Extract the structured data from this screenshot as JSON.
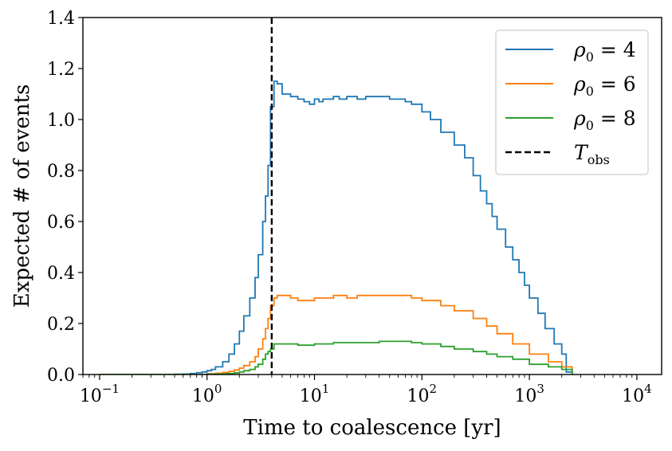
{
  "chart_data": {
    "type": "line",
    "style": "step histogram",
    "xscale": "log",
    "xlabel": "Time to coalescence [yr]",
    "ylabel": "Expected # of events",
    "xlim": [
      0.07,
      17000
    ],
    "ylim": [
      0,
      1.4
    ],
    "xticks": [
      {
        "value": 0.1,
        "base": "10",
        "exp": "−1"
      },
      {
        "value": 1,
        "base": "10",
        "exp": "0"
      },
      {
        "value": 10,
        "base": "10",
        "exp": "1"
      },
      {
        "value": 100,
        "base": "10",
        "exp": "2"
      },
      {
        "value": 1000,
        "base": "10",
        "exp": "3"
      },
      {
        "value": 10000,
        "base": "10",
        "exp": "4"
      }
    ],
    "yticks": [
      {
        "value": 0,
        "label": "0.0"
      },
      {
        "value": 0.2,
        "label": "0.2"
      },
      {
        "value": 0.4,
        "label": "0.4"
      },
      {
        "value": 0.6,
        "label": "0.6"
      },
      {
        "value": 0.8,
        "label": "0.8"
      },
      {
        "value": 1.0,
        "label": "1.0"
      },
      {
        "value": 1.2,
        "label": "1.2"
      },
      {
        "value": 1.4,
        "label": "1.4"
      }
    ],
    "grid": false,
    "legend_position": "top-right",
    "vline": {
      "x": 4,
      "color": "#000000",
      "dash": "dashed",
      "legend": "T",
      "legend_sub": "obs"
    },
    "series": [
      {
        "name": "ρ0 = 4",
        "label_symbol": "ρ",
        "label_sub": "0",
        "label_rest": " = 4",
        "color": "#1f77b4",
        "x": [
          0.1,
          0.2,
          0.3,
          0.4,
          0.5,
          0.6,
          0.7,
          0.8,
          0.9,
          1.0,
          1.1,
          1.2,
          1.4,
          1.6,
          1.8,
          2.0,
          2.2,
          2.5,
          2.8,
          3.0,
          3.3,
          3.5,
          3.7,
          3.9,
          4.2,
          4.5,
          5,
          6,
          7,
          8,
          9,
          10,
          11,
          12,
          13,
          15,
          17,
          20,
          25,
          30,
          40,
          50,
          60,
          70,
          80,
          100,
          120,
          150,
          200,
          250,
          300,
          350,
          400,
          450,
          500,
          600,
          700,
          800,
          900,
          1000,
          1200,
          1400,
          1700,
          2000,
          2200,
          2500
        ],
        "y": [
          0.0,
          0.0,
          0.0,
          0.0,
          0.001,
          0.002,
          0.004,
          0.007,
          0.01,
          0.015,
          0.02,
          0.03,
          0.05,
          0.08,
          0.12,
          0.17,
          0.23,
          0.3,
          0.38,
          0.47,
          0.6,
          0.7,
          0.82,
          1.05,
          1.15,
          1.14,
          1.1,
          1.09,
          1.08,
          1.07,
          1.06,
          1.08,
          1.07,
          1.08,
          1.08,
          1.09,
          1.08,
          1.09,
          1.08,
          1.09,
          1.09,
          1.08,
          1.08,
          1.07,
          1.06,
          1.03,
          1.0,
          0.95,
          0.9,
          0.85,
          0.78,
          0.72,
          0.67,
          0.62,
          0.57,
          0.5,
          0.45,
          0.4,
          0.35,
          0.3,
          0.24,
          0.18,
          0.12,
          0.08,
          0.01,
          0.0
        ]
      },
      {
        "name": "ρ0 = 6",
        "label_symbol": "ρ",
        "label_sub": "0",
        "label_rest": " = 6",
        "color": "#ff7f0e",
        "x": [
          0.1,
          0.5,
          1.0,
          1.2,
          1.4,
          1.6,
          1.8,
          2.0,
          2.2,
          2.5,
          2.8,
          3.0,
          3.3,
          3.5,
          3.7,
          3.9,
          4.2,
          4.5,
          5,
          6,
          7,
          8,
          9,
          10,
          12,
          15,
          20,
          25,
          30,
          40,
          50,
          60,
          80,
          100,
          150,
          200,
          300,
          400,
          500,
          700,
          1000,
          1500,
          2000,
          2500
        ],
        "y": [
          0.0,
          0.0,
          0.003,
          0.005,
          0.008,
          0.012,
          0.018,
          0.025,
          0.035,
          0.05,
          0.07,
          0.1,
          0.14,
          0.18,
          0.22,
          0.27,
          0.3,
          0.31,
          0.31,
          0.3,
          0.29,
          0.29,
          0.29,
          0.3,
          0.3,
          0.31,
          0.3,
          0.31,
          0.31,
          0.31,
          0.31,
          0.31,
          0.3,
          0.29,
          0.27,
          0.25,
          0.22,
          0.19,
          0.16,
          0.12,
          0.08,
          0.05,
          0.03,
          0.0
        ]
      },
      {
        "name": "ρ0 = 8",
        "label_symbol": "ρ",
        "label_sub": "0",
        "label_rest": " = 8",
        "color": "#2ca02c",
        "x": [
          0.1,
          0.5,
          1.0,
          1.2,
          1.5,
          1.8,
          2.0,
          2.2,
          2.5,
          2.8,
          3.0,
          3.3,
          3.5,
          3.7,
          3.9,
          4.2,
          4.5,
          5,
          6,
          7,
          8,
          10,
          15,
          20,
          30,
          40,
          50,
          60,
          80,
          100,
          150,
          200,
          300,
          400,
          500,
          700,
          1000,
          1500,
          2000,
          2500
        ],
        "y": [
          0.0,
          0.0,
          0.001,
          0.002,
          0.004,
          0.006,
          0.01,
          0.015,
          0.02,
          0.03,
          0.04,
          0.06,
          0.08,
          0.09,
          0.1,
          0.12,
          0.12,
          0.12,
          0.12,
          0.115,
          0.115,
          0.12,
          0.125,
          0.125,
          0.125,
          0.13,
          0.13,
          0.13,
          0.125,
          0.12,
          0.11,
          0.1,
          0.09,
          0.08,
          0.07,
          0.06,
          0.04,
          0.03,
          0.02,
          0.0
        ]
      }
    ]
  }
}
